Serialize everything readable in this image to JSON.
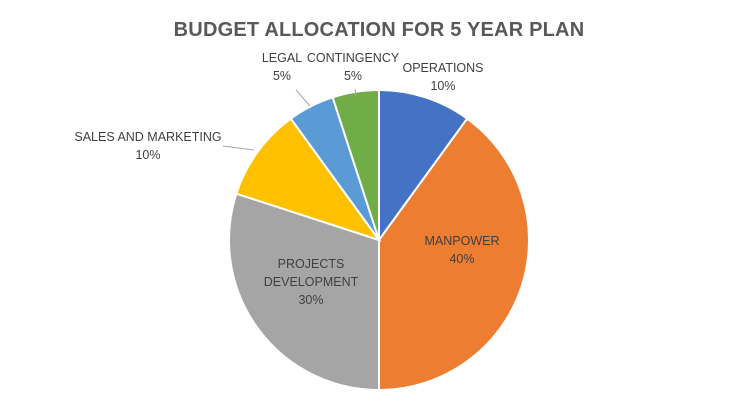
{
  "chart_data": {
    "type": "pie",
    "title": "BUDGET ALLOCATION FOR 5 YEAR PLAN",
    "slices": [
      {
        "name": "OPERATIONS",
        "value": 10,
        "label_lines": [
          "OPERATIONS",
          "10%"
        ],
        "color": "#4472C4"
      },
      {
        "name": "MANPOWER",
        "value": 40,
        "label_lines": [
          "MANPOWER",
          "40%"
        ],
        "color": "#ED7D31"
      },
      {
        "name": "PROJECTS DEVELOPMENT",
        "value": 30,
        "label_lines": [
          "PROJECTS",
          "DEVELOPMENT",
          "30%"
        ],
        "color": "#A5A5A5"
      },
      {
        "name": "SALES AND MARKETING",
        "value": 10,
        "label_lines": [
          "SALES AND MARKETING",
          "10%"
        ],
        "color": "#FFC000"
      },
      {
        "name": "LEGAL",
        "value": 5,
        "label_lines": [
          "LEGAL",
          "5%"
        ],
        "color": "#5B9BD5"
      },
      {
        "name": "CONTINGENCY",
        "value": 5,
        "label_lines": [
          "CONTINGENCY",
          "5%"
        ],
        "color": "#70AD47"
      }
    ],
    "start_angle_deg": 0,
    "direction": "clockwise",
    "legend": "none"
  }
}
